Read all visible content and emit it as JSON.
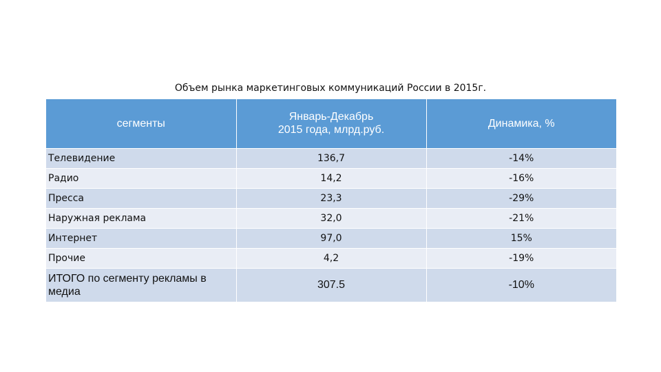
{
  "title": "Объем рынка маркетинговых коммуникаций России в 2015г.",
  "headers": {
    "segment": "сегменты",
    "volume": "Январь-Декабрь 2015 года, млрд.руб.",
    "dynamics": "Динамика, %"
  },
  "rows": [
    {
      "segment": "Телевидение",
      "volume": "136,7",
      "dynamics": "-14%"
    },
    {
      "segment": "Радио",
      "volume": "14,2",
      "dynamics": "-16%"
    },
    {
      "segment": "Пресса",
      "volume": "23,3",
      "dynamics": "-29%"
    },
    {
      "segment": "Наружная реклама",
      "volume": "32,0",
      "dynamics": "-21%"
    },
    {
      "segment": "Интернет",
      "volume": "97,0",
      "dynamics": "15%"
    },
    {
      "segment": "Прочие",
      "volume": "4,2",
      "dynamics": "-19%"
    }
  ],
  "total": {
    "segment": "ИТОГО по сегменту рекламы в медиа",
    "volume": "307.5",
    "dynamics": "-10%"
  },
  "colors": {
    "header_bg": "#5b9bd5",
    "row_odd": "#cfdaeb",
    "row_even": "#e9edf5"
  }
}
